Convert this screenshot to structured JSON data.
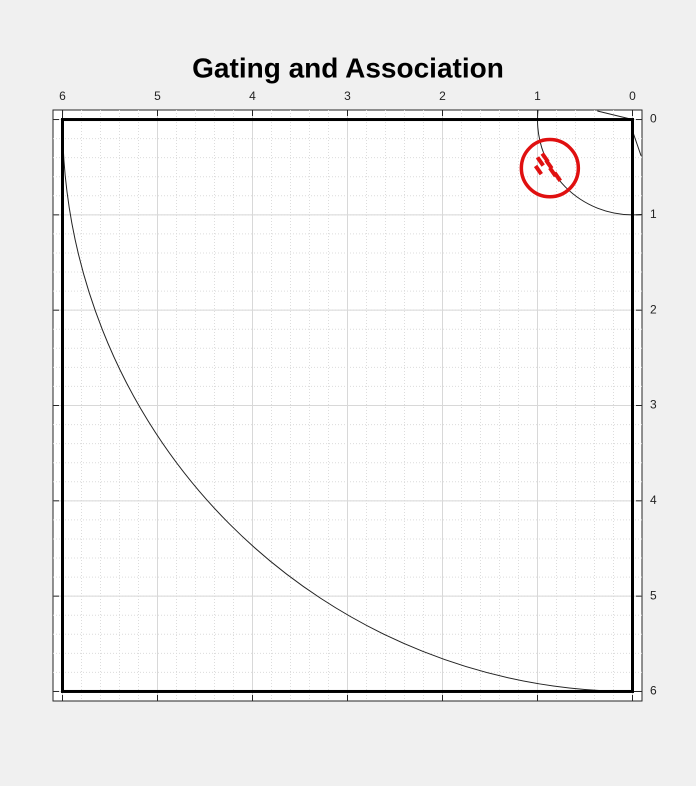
{
  "chart_data": {
    "type": "tracking",
    "title": "Gating and Association",
    "xlim": [
      6.1,
      -0.1
    ],
    "ylim": [
      -0.1,
      6.1
    ],
    "xticks": [
      6,
      5,
      4,
      3,
      2,
      1,
      0
    ],
    "yticks": [
      0,
      1,
      2,
      3,
      4,
      5,
      6
    ],
    "x_axis_location": "top",
    "y_axis_location": "right",
    "grid": true,
    "minor_grid": true,
    "minor_step": 0.2,
    "boundary": {
      "x": [
        0,
        6
      ],
      "y": [
        0,
        6
      ],
      "color": "#000000"
    },
    "arcs": [
      {
        "cx": 0,
        "cy": 0,
        "r": 6,
        "color": "#222222"
      },
      {
        "cx": 0,
        "cy": 0,
        "r": 1,
        "color": "#222222"
      }
    ],
    "segments": [
      {
        "x": [
          0.37,
          0
        ],
        "y": [
          -0.09,
          0
        ],
        "color": "#222222"
      },
      {
        "x": [
          0,
          -0.09
        ],
        "y": [
          0.12,
          0.38
        ],
        "color": "#222222"
      }
    ],
    "gate": {
      "cx": 0.87,
      "cy": 0.51,
      "r": 0.3,
      "color": "#e01010"
    },
    "detections": {
      "color": "#e01010",
      "x": [
        0.97,
        0.92,
        0.88,
        0.84,
        0.79,
        0.99
      ],
      "y": [
        0.44,
        0.4,
        0.47,
        0.55,
        0.6,
        0.53
      ]
    }
  }
}
